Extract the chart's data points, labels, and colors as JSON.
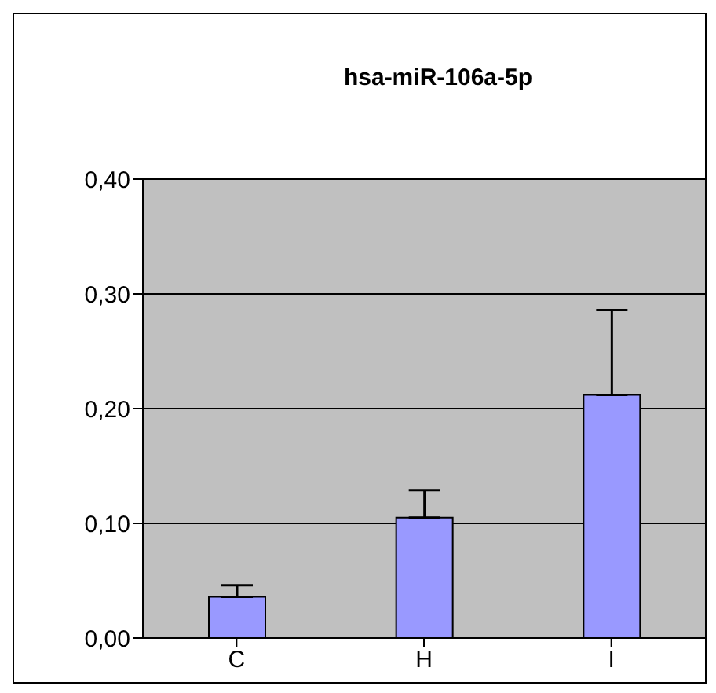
{
  "chart_data": {
    "type": "bar",
    "title": "hsa-miR-106a-5p",
    "categories": [
      "C",
      "H",
      "I"
    ],
    "values": [
      0.036,
      0.105,
      0.212
    ],
    "errors": [
      [
        0.036,
        0.046
      ],
      [
        0.105,
        0.129
      ],
      [
        0.212,
        0.286
      ]
    ],
    "color": "#9999ff",
    "ylim": [
      0,
      0.4
    ],
    "yticks": [
      {
        "value": 0,
        "label": "0,00"
      },
      {
        "value": 0.1,
        "label": "0,10"
      },
      {
        "value": 0.2,
        "label": "0,20"
      },
      {
        "value": 0.3,
        "label": "0,30"
      },
      {
        "value": 0.4,
        "label": "0,40"
      }
    ],
    "grid": "y"
  }
}
